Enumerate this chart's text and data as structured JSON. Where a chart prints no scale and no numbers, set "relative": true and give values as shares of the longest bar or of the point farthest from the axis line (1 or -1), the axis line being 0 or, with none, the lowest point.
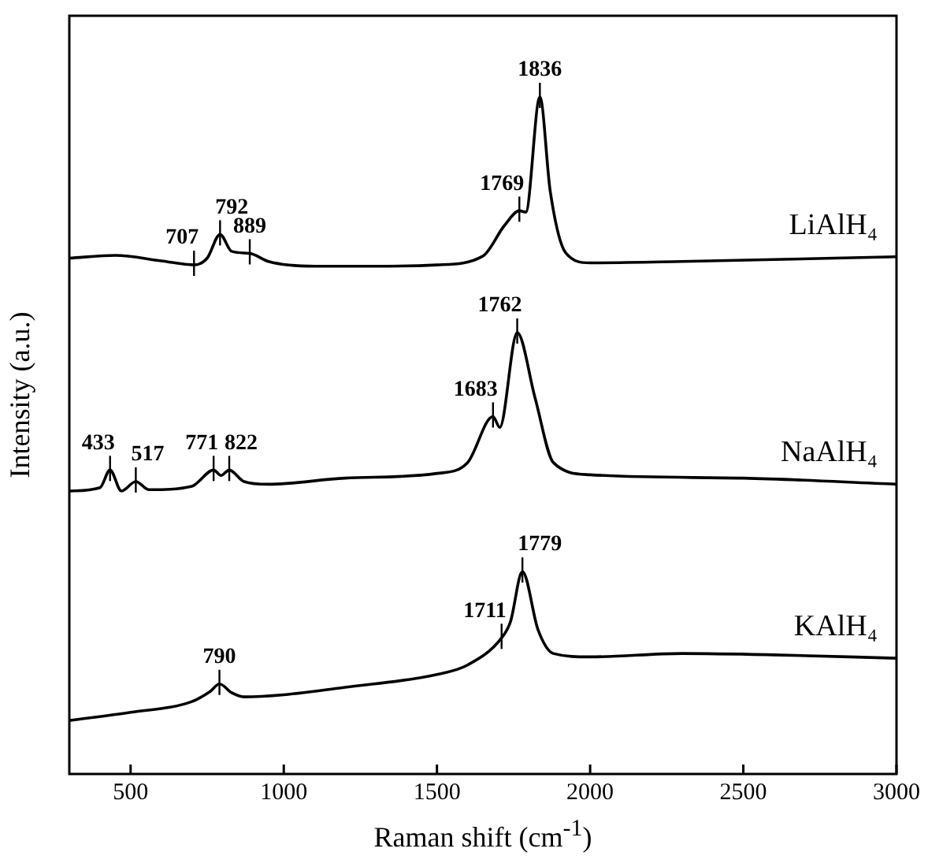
{
  "chart_data": {
    "type": "line",
    "xlabel": "Raman shift (cm$^{-1}$)",
    "ylabel": "Intensity (a.u.)",
    "relative": true,
    "legend": false,
    "marker": "none",
    "line_style": "solid",
    "grid": false,
    "tick_labels": "x",
    "xlim": [
      300,
      3000
    ],
    "xticks": [
      500,
      1000,
      1500,
      2000,
      2500,
      3000
    ],
    "series": [
      {
        "name": "LiAlH₄",
        "color": "#000000",
        "x": [
          300,
          450,
          600,
          707,
          750,
          792,
          830,
          889,
          950,
          1100,
          1300,
          1500,
          1650,
          1720,
          1769,
          1790,
          1836,
          1870,
          1920,
          2000,
          2300,
          2600,
          3000
        ],
        "values": [
          0.762,
          0.766,
          0.758,
          0.752,
          0.762,
          0.797,
          0.772,
          0.769,
          0.757,
          0.75,
          0.75,
          0.752,
          0.765,
          0.81,
          0.832,
          0.83,
          1.0,
          0.86,
          0.77,
          0.755,
          0.757,
          0.76,
          0.764
        ]
      },
      {
        "name": "NaAlH₄",
        "color": "#000000",
        "x": [
          300,
          400,
          433,
          470,
          517,
          560,
          700,
          771,
          795,
          822,
          870,
          950,
          1200,
          1500,
          1600,
          1683,
          1705,
          1762,
          1820,
          1880,
          2000,
          2500,
          3000
        ],
        "values": [
          0.418,
          0.423,
          0.449,
          0.418,
          0.432,
          0.42,
          0.425,
          0.449,
          0.441,
          0.449,
          0.432,
          0.428,
          0.437,
          0.444,
          0.46,
          0.528,
          0.512,
          0.652,
          0.556,
          0.46,
          0.442,
          0.437,
          0.428
        ]
      },
      {
        "name": "KAlH₄",
        "color": "#000000",
        "x": [
          300,
          500,
          700,
          760,
          790,
          830,
          870,
          1000,
          1200,
          1500,
          1600,
          1711,
          1740,
          1779,
          1830,
          1880,
          2000,
          2300,
          2600,
          3000
        ],
        "values": [
          0.079,
          0.091,
          0.107,
          0.122,
          0.133,
          0.12,
          0.114,
          0.117,
          0.128,
          0.147,
          0.161,
          0.201,
          0.225,
          0.299,
          0.213,
          0.178,
          0.173,
          0.178,
          0.176,
          0.171
        ]
      }
    ],
    "annotations": [
      {
        "text": "707",
        "x": 707,
        "y": 0.752
      },
      {
        "text": "792",
        "x": 792,
        "y": 0.797
      },
      {
        "text": "889",
        "x": 889,
        "y": 0.769
      },
      {
        "text": "1769",
        "x": 1769,
        "y": 0.832
      },
      {
        "text": "1836",
        "x": 1836,
        "y": 1.0
      },
      {
        "text": "433",
        "x": 433,
        "y": 0.449
      },
      {
        "text": "517",
        "x": 517,
        "y": 0.432
      },
      {
        "text": "771",
        "x": 771,
        "y": 0.449
      },
      {
        "text": "822",
        "x": 822,
        "y": 0.449
      },
      {
        "text": "1683",
        "x": 1683,
        "y": 0.528
      },
      {
        "text": "1762",
        "x": 1762,
        "y": 0.652
      },
      {
        "text": "790",
        "x": 790,
        "y": 0.133
      },
      {
        "text": "1711",
        "x": 1711,
        "y": 0.201
      },
      {
        "text": "1779",
        "x": 1779,
        "y": 0.299
      }
    ]
  }
}
